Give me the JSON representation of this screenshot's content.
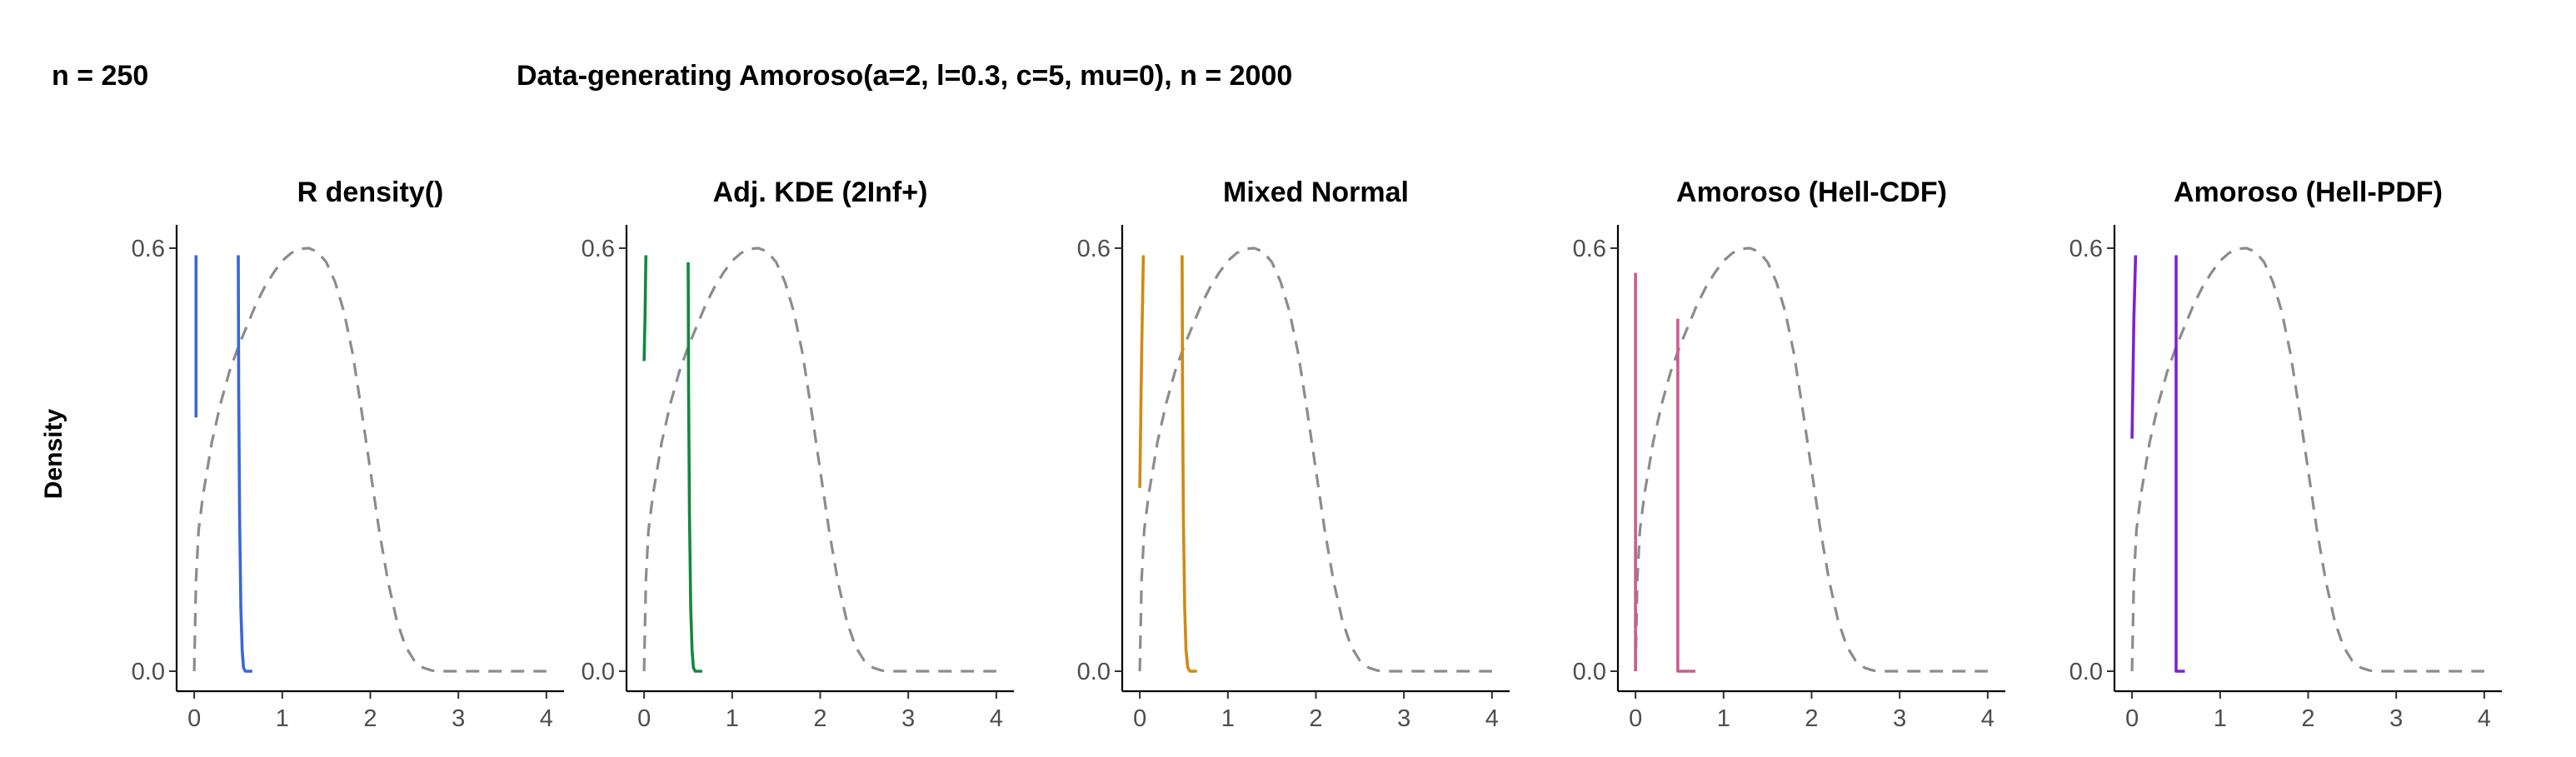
{
  "header": {
    "left_label": "n = 250",
    "title": "Data-generating Amoroso(a=2, l=0.3, c=5, mu=0), n = 2000"
  },
  "ylabel": "Density",
  "reference_style": {
    "color": "#8c8c8c",
    "dash": "dashed"
  },
  "chart_data": [
    {
      "type": "line",
      "title": "R density()",
      "xlim": [
        -0.2,
        4.2
      ],
      "ylim": [
        0,
        0.6
      ],
      "xticks": [
        0,
        1,
        2,
        3,
        4
      ],
      "yticks": [
        0,
        0.6
      ],
      "series": [
        {
          "role": "estimate",
          "color": "#3a66d9",
          "segments": [
            [
              [
                0.02,
                0.36
              ],
              [
                0.02,
                0.59
              ]
            ],
            [
              [
                0.5,
                0.59
              ],
              [
                0.505,
                0.4
              ],
              [
                0.515,
                0.22
              ],
              [
                0.53,
                0.09
              ],
              [
                0.545,
                0.03
              ],
              [
                0.56,
                0.005
              ],
              [
                0.58,
                0.0
              ],
              [
                0.66,
                0.0
              ]
            ]
          ]
        },
        {
          "role": "reference",
          "color": "#8c8c8c",
          "points": [
            [
              0.0,
              0.0
            ],
            [
              0.02,
              0.13
            ],
            [
              0.05,
              0.2
            ],
            [
              0.1,
              0.25
            ],
            [
              0.2,
              0.325
            ],
            [
              0.3,
              0.38
            ],
            [
              0.4,
              0.425
            ],
            [
              0.5,
              0.46
            ],
            [
              0.6,
              0.49
            ],
            [
              0.7,
              0.52
            ],
            [
              0.8,
              0.545
            ],
            [
              0.9,
              0.565
            ],
            [
              1.0,
              0.582
            ],
            [
              1.1,
              0.593
            ],
            [
              1.2,
              0.599
            ],
            [
              1.3,
              0.6
            ],
            [
              1.4,
              0.595
            ],
            [
              1.5,
              0.58
            ],
            [
              1.6,
              0.552
            ],
            [
              1.7,
              0.51
            ],
            [
              1.8,
              0.45
            ],
            [
              1.9,
              0.37
            ],
            [
              2.0,
              0.285
            ],
            [
              2.1,
              0.2
            ],
            [
              2.2,
              0.128
            ],
            [
              2.3,
              0.072
            ],
            [
              2.4,
              0.035
            ],
            [
              2.5,
              0.015
            ],
            [
              2.6,
              0.005
            ],
            [
              2.7,
              0.001
            ],
            [
              2.8,
              0.0
            ],
            [
              4.0,
              0.0
            ]
          ]
        }
      ]
    },
    {
      "type": "line",
      "title": "Adj. KDE (2Inf+)",
      "xlim": [
        -0.2,
        4.2
      ],
      "ylim": [
        0,
        0.6
      ],
      "xticks": [
        0,
        1,
        2,
        3,
        4
      ],
      "yticks": [
        0,
        0.6
      ],
      "series": [
        {
          "role": "estimate",
          "color": "#13883f",
          "segments": [
            [
              [
                0.0,
                0.44
              ],
              [
                0.01,
                0.5
              ],
              [
                0.02,
                0.59
              ]
            ],
            [
              [
                0.5,
                0.58
              ],
              [
                0.505,
                0.4
              ],
              [
                0.515,
                0.22
              ],
              [
                0.53,
                0.09
              ],
              [
                0.545,
                0.03
              ],
              [
                0.56,
                0.005
              ],
              [
                0.58,
                0.0
              ],
              [
                0.66,
                0.0
              ]
            ]
          ]
        },
        {
          "role": "reference",
          "color": "#8c8c8c",
          "points": [
            [
              0.0,
              0.0
            ],
            [
              0.02,
              0.13
            ],
            [
              0.05,
              0.2
            ],
            [
              0.1,
              0.25
            ],
            [
              0.2,
              0.325
            ],
            [
              0.3,
              0.38
            ],
            [
              0.4,
              0.425
            ],
            [
              0.5,
              0.46
            ],
            [
              0.6,
              0.49
            ],
            [
              0.7,
              0.52
            ],
            [
              0.8,
              0.545
            ],
            [
              0.9,
              0.565
            ],
            [
              1.0,
              0.582
            ],
            [
              1.1,
              0.593
            ],
            [
              1.2,
              0.599
            ],
            [
              1.3,
              0.6
            ],
            [
              1.4,
              0.595
            ],
            [
              1.5,
              0.58
            ],
            [
              1.6,
              0.552
            ],
            [
              1.7,
              0.51
            ],
            [
              1.8,
              0.45
            ],
            [
              1.9,
              0.37
            ],
            [
              2.0,
              0.285
            ],
            [
              2.1,
              0.2
            ],
            [
              2.2,
              0.128
            ],
            [
              2.3,
              0.072
            ],
            [
              2.4,
              0.035
            ],
            [
              2.5,
              0.015
            ],
            [
              2.6,
              0.005
            ],
            [
              2.7,
              0.001
            ],
            [
              2.8,
              0.0
            ],
            [
              4.0,
              0.0
            ]
          ]
        }
      ]
    },
    {
      "type": "line",
      "title": "Mixed Normal",
      "xlim": [
        -0.2,
        4.2
      ],
      "ylim": [
        0,
        0.6
      ],
      "xticks": [
        0,
        1,
        2,
        3,
        4
      ],
      "yticks": [
        0,
        0.6
      ],
      "series": [
        {
          "role": "estimate",
          "color": "#d08a14",
          "segments": [
            [
              [
                0.0,
                0.26
              ],
              [
                0.02,
                0.45
              ],
              [
                0.04,
                0.59
              ]
            ],
            [
              [
                0.48,
                0.59
              ],
              [
                0.485,
                0.4
              ],
              [
                0.495,
                0.22
              ],
              [
                0.51,
                0.09
              ],
              [
                0.525,
                0.03
              ],
              [
                0.545,
                0.005
              ],
              [
                0.57,
                0.0
              ],
              [
                0.65,
                0.0
              ]
            ]
          ]
        },
        {
          "role": "reference",
          "color": "#8c8c8c",
          "points": [
            [
              0.0,
              0.0
            ],
            [
              0.02,
              0.13
            ],
            [
              0.05,
              0.2
            ],
            [
              0.1,
              0.25
            ],
            [
              0.2,
              0.325
            ],
            [
              0.3,
              0.38
            ],
            [
              0.4,
              0.425
            ],
            [
              0.5,
              0.46
            ],
            [
              0.6,
              0.49
            ],
            [
              0.7,
              0.52
            ],
            [
              0.8,
              0.545
            ],
            [
              0.9,
              0.565
            ],
            [
              1.0,
              0.582
            ],
            [
              1.1,
              0.593
            ],
            [
              1.2,
              0.599
            ],
            [
              1.3,
              0.6
            ],
            [
              1.4,
              0.595
            ],
            [
              1.5,
              0.58
            ],
            [
              1.6,
              0.552
            ],
            [
              1.7,
              0.51
            ],
            [
              1.8,
              0.45
            ],
            [
              1.9,
              0.37
            ],
            [
              2.0,
              0.285
            ],
            [
              2.1,
              0.2
            ],
            [
              2.2,
              0.128
            ],
            [
              2.3,
              0.072
            ],
            [
              2.4,
              0.035
            ],
            [
              2.5,
              0.015
            ],
            [
              2.6,
              0.005
            ],
            [
              2.7,
              0.001
            ],
            [
              2.8,
              0.0
            ],
            [
              4.0,
              0.0
            ]
          ]
        }
      ]
    },
    {
      "type": "line",
      "title": "Amoroso (Hell-CDF)",
      "xlim": [
        -0.2,
        4.2
      ],
      "ylim": [
        0,
        0.6
      ],
      "xticks": [
        0,
        1,
        2,
        3,
        4
      ],
      "yticks": [
        0,
        0.6
      ],
      "series": [
        {
          "role": "estimate",
          "color": "#cc5c8c",
          "segments": [
            [
              [
                0.0,
                0.0
              ],
              [
                0.0,
                0.565
              ]
            ],
            [
              [
                0.48,
                0.5
              ],
              [
                0.48,
                0.0
              ],
              [
                0.68,
                0.0
              ]
            ]
          ]
        },
        {
          "role": "reference",
          "color": "#8c8c8c",
          "points": [
            [
              0.0,
              0.0
            ],
            [
              0.02,
              0.13
            ],
            [
              0.05,
              0.2
            ],
            [
              0.1,
              0.25
            ],
            [
              0.2,
              0.325
            ],
            [
              0.3,
              0.38
            ],
            [
              0.4,
              0.425
            ],
            [
              0.5,
              0.46
            ],
            [
              0.6,
              0.49
            ],
            [
              0.7,
              0.52
            ],
            [
              0.8,
              0.545
            ],
            [
              0.9,
              0.565
            ],
            [
              1.0,
              0.582
            ],
            [
              1.1,
              0.593
            ],
            [
              1.2,
              0.599
            ],
            [
              1.3,
              0.6
            ],
            [
              1.4,
              0.595
            ],
            [
              1.5,
              0.58
            ],
            [
              1.6,
              0.552
            ],
            [
              1.7,
              0.51
            ],
            [
              1.8,
              0.45
            ],
            [
              1.9,
              0.37
            ],
            [
              2.0,
              0.285
            ],
            [
              2.1,
              0.2
            ],
            [
              2.2,
              0.128
            ],
            [
              2.3,
              0.072
            ],
            [
              2.4,
              0.035
            ],
            [
              2.5,
              0.015
            ],
            [
              2.6,
              0.005
            ],
            [
              2.7,
              0.001
            ],
            [
              2.8,
              0.0
            ],
            [
              4.0,
              0.0
            ]
          ]
        }
      ]
    },
    {
      "type": "line",
      "title": "Amoroso (Hell-PDF)",
      "xlim": [
        -0.2,
        4.2
      ],
      "ylim": [
        0,
        0.6
      ],
      "xticks": [
        0,
        1,
        2,
        3,
        4
      ],
      "yticks": [
        0,
        0.6
      ],
      "series": [
        {
          "role": "estimate",
          "color": "#7e22cc",
          "segments": [
            [
              [
                0.0,
                0.33
              ],
              [
                0.02,
                0.5
              ],
              [
                0.04,
                0.59
              ]
            ],
            [
              [
                0.5,
                0.59
              ],
              [
                0.5,
                0.22
              ],
              [
                0.5,
                0.0
              ],
              [
                0.6,
                0.0
              ]
            ]
          ]
        },
        {
          "role": "reference",
          "color": "#8c8c8c",
          "points": [
            [
              0.0,
              0.0
            ],
            [
              0.02,
              0.13
            ],
            [
              0.05,
              0.2
            ],
            [
              0.1,
              0.25
            ],
            [
              0.2,
              0.325
            ],
            [
              0.3,
              0.38
            ],
            [
              0.4,
              0.425
            ],
            [
              0.5,
              0.46
            ],
            [
              0.6,
              0.49
            ],
            [
              0.7,
              0.52
            ],
            [
              0.8,
              0.545
            ],
            [
              0.9,
              0.565
            ],
            [
              1.0,
              0.582
            ],
            [
              1.1,
              0.593
            ],
            [
              1.2,
              0.599
            ],
            [
              1.3,
              0.6
            ],
            [
              1.4,
              0.595
            ],
            [
              1.5,
              0.58
            ],
            [
              1.6,
              0.552
            ],
            [
              1.7,
              0.51
            ],
            [
              1.8,
              0.45
            ],
            [
              1.9,
              0.37
            ],
            [
              2.0,
              0.285
            ],
            [
              2.1,
              0.2
            ],
            [
              2.2,
              0.128
            ],
            [
              2.3,
              0.072
            ],
            [
              2.4,
              0.035
            ],
            [
              2.5,
              0.015
            ],
            [
              2.6,
              0.005
            ],
            [
              2.7,
              0.001
            ],
            [
              2.8,
              0.0
            ],
            [
              4.0,
              0.0
            ]
          ]
        }
      ]
    }
  ]
}
